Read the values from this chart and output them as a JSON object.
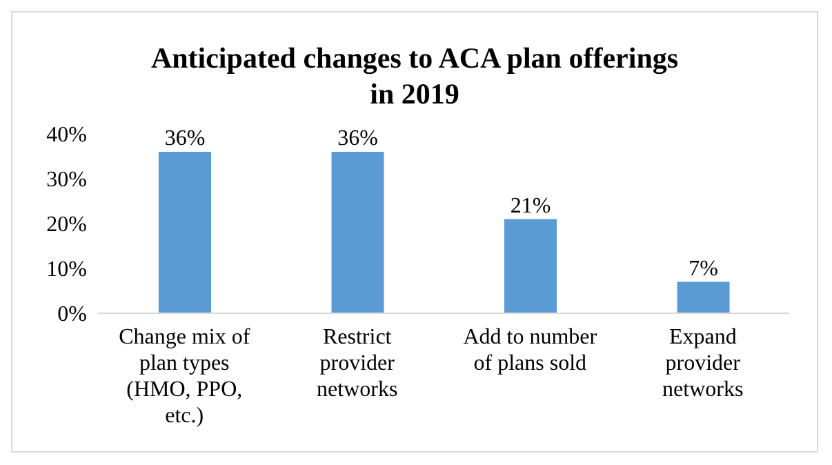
{
  "chart_data": {
    "type": "bar",
    "title": "Anticipated changes to ACA plan offerings in 2019",
    "categories": [
      "Change mix of plan types (HMO, PPO, etc.)",
      "Restrict provider networks",
      "Add to number of plans sold",
      "Expand provider networks"
    ],
    "values": [
      36,
      36,
      21,
      7
    ],
    "color": "#5b9bd5",
    "value_labels": [
      "36%",
      "36%",
      "21%",
      "7%"
    ],
    "ylim": [
      0,
      40
    ],
    "yticks": [
      {
        "value": 0,
        "label": "0%"
      },
      {
        "value": 10,
        "label": "10%"
      },
      {
        "value": 20,
        "label": "20%"
      },
      {
        "value": 30,
        "label": "30%"
      },
      {
        "value": 40,
        "label": "40%"
      }
    ],
    "grid": false,
    "legend": false
  }
}
